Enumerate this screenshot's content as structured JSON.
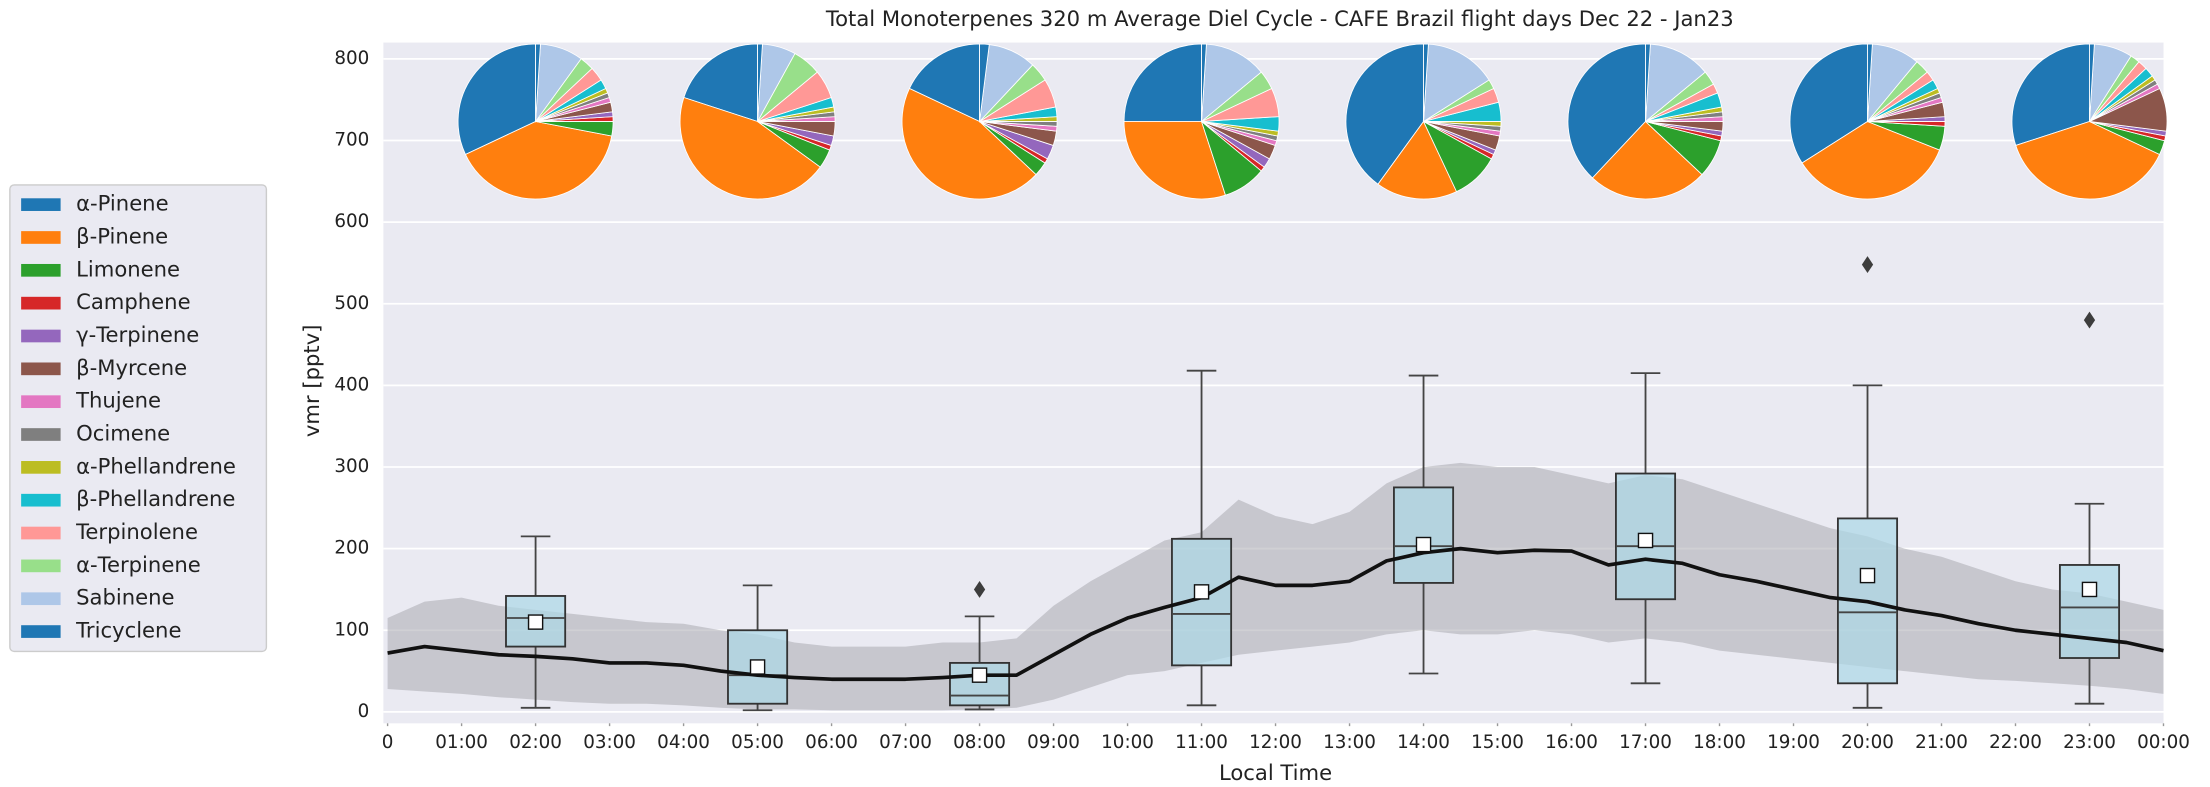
{
  "chart_data": {
    "type": "box",
    "title": "Total Monoterpenes 320 m Average Diel Cycle - CAFE Brazil flight days Dec 22 - Jan23",
    "xlabel": "Local Time",
    "ylabel": "vmr [pptv]",
    "xlim": [
      0,
      24
    ],
    "xticks": [
      0,
      {
        "value": 1,
        "label": "01:00"
      },
      {
        "value": 2,
        "label": "02:00"
      },
      {
        "value": 3,
        "label": "03:00"
      },
      {
        "value": 4,
        "label": "04:00"
      },
      {
        "value": 5,
        "label": "05:00"
      },
      {
        "value": 6,
        "label": "06:00"
      },
      {
        "value": 7,
        "label": "07:00"
      },
      {
        "value": 8,
        "label": "08:00"
      },
      {
        "value": 9,
        "label": "09:00"
      },
      {
        "value": 10,
        "label": "10:00"
      },
      {
        "value": 11,
        "label": "11:00"
      },
      {
        "value": 12,
        "label": "12:00"
      },
      {
        "value": 13,
        "label": "13:00"
      },
      {
        "value": 14,
        "label": "14:00"
      },
      {
        "value": 15,
        "label": "15:00"
      },
      {
        "value": 16,
        "label": "16:00"
      },
      {
        "value": 17,
        "label": "17:00"
      },
      {
        "value": 18,
        "label": "18:00"
      },
      {
        "value": 19,
        "label": "19:00"
      },
      {
        "value": 20,
        "label": "20:00"
      },
      {
        "value": 21,
        "label": "21:00"
      },
      {
        "value": 22,
        "label": "22:00"
      },
      {
        "value": 23,
        "label": "23:00"
      },
      {
        "value": 24,
        "label": "00:00"
      }
    ],
    "ylim": [
      -14,
      820
    ],
    "yticks": [
      0,
      100,
      200,
      300,
      400,
      500,
      600,
      700,
      800
    ],
    "grid": "y",
    "box_color": "#add8e6",
    "boxes": [
      {
        "x": 2,
        "whisker_low": 5,
        "q1": 80,
        "median": 115,
        "q3": 142,
        "whisker_high": 215,
        "mean": 110,
        "outliers": []
      },
      {
        "x": 5,
        "whisker_low": 2,
        "q1": 10,
        "median": 45,
        "q3": 100,
        "whisker_high": 155,
        "mean": 55,
        "outliers": []
      },
      {
        "x": 8,
        "whisker_low": 3,
        "q1": 8,
        "median": 20,
        "q3": 60,
        "whisker_high": 117,
        "mean": 45,
        "outliers": [
          150
        ]
      },
      {
        "x": 11,
        "whisker_low": 8,
        "q1": 57,
        "median": 120,
        "q3": 212,
        "whisker_high": 418,
        "mean": 147,
        "outliers": []
      },
      {
        "x": 14,
        "whisker_low": 47,
        "q1": 158,
        "median": 203,
        "q3": 275,
        "whisker_high": 412,
        "mean": 205,
        "outliers": []
      },
      {
        "x": 17,
        "whisker_low": 35,
        "q1": 138,
        "median": 203,
        "q3": 292,
        "whisker_high": 415,
        "mean": 210,
        "outliers": []
      },
      {
        "x": 20,
        "whisker_low": 5,
        "q1": 35,
        "median": 122,
        "q3": 237,
        "whisker_high": 400,
        "mean": 167,
        "outliers": [
          548
        ]
      },
      {
        "x": 23,
        "whisker_low": 10,
        "q1": 66,
        "median": 128,
        "q3": 180,
        "whisker_high": 255,
        "mean": 150,
        "outliers": [
          480
        ]
      }
    ],
    "line": {
      "color": "#111111",
      "band_color": "#a9a9b0",
      "x": [
        0,
        0.5,
        1,
        1.5,
        2,
        2.5,
        3,
        3.5,
        4,
        4.5,
        5,
        5.5,
        6,
        6.5,
        7,
        7.5,
        8,
        8.5,
        9,
        9.5,
        10,
        10.5,
        11,
        11.5,
        12,
        12.5,
        13,
        13.5,
        14,
        14.5,
        15,
        15.5,
        16,
        16.5,
        17,
        17.5,
        18,
        18.5,
        19,
        19.5,
        20,
        20.5,
        21,
        21.5,
        22,
        22.5,
        23,
        23.5,
        24
      ],
      "values": [
        72,
        80,
        75,
        70,
        68,
        65,
        60,
        60,
        57,
        50,
        45,
        42,
        40,
        40,
        40,
        42,
        45,
        45,
        70,
        95,
        115,
        128,
        140,
        165,
        155,
        155,
        160,
        185,
        195,
        200,
        195,
        198,
        197,
        180,
        187,
        182,
        168,
        160,
        150,
        140,
        135,
        125,
        118,
        108,
        100,
        95,
        90,
        85,
        75
      ],
      "upper": [
        115,
        135,
        140,
        130,
        125,
        120,
        115,
        110,
        108,
        100,
        95,
        85,
        80,
        80,
        80,
        85,
        85,
        90,
        130,
        160,
        185,
        210,
        220,
        260,
        240,
        230,
        245,
        280,
        300,
        305,
        300,
        300,
        290,
        280,
        290,
        285,
        270,
        255,
        240,
        225,
        215,
        200,
        190,
        175,
        160,
        150,
        145,
        135,
        125
      ],
      "lower": [
        28,
        25,
        22,
        18,
        15,
        12,
        10,
        10,
        8,
        5,
        3,
        3,
        2,
        2,
        2,
        2,
        3,
        5,
        15,
        30,
        45,
        50,
        60,
        70,
        75,
        80,
        85,
        95,
        100,
        95,
        95,
        100,
        95,
        85,
        90,
        85,
        75,
        70,
        65,
        60,
        55,
        50,
        45,
        40,
        38,
        35,
        32,
        28,
        22
      ]
    },
    "pies": {
      "labels": [
        "α-Pinene",
        "β-Pinene",
        "Limonene",
        "Camphene",
        "γ-Terpinene",
        "β-Myrcene",
        "Thujene",
        "Ocimene",
        "α-Phellandrene",
        "β-Phellandrene",
        "Terpinolene",
        "α-Terpinene",
        "Sabinene",
        "Tricyclene"
      ],
      "colors": [
        "#1f77b4",
        "#ff7f0e",
        "#2ca02c",
        "#d62728",
        "#9467bd",
        "#8c564b",
        "#e377c2",
        "#7f7f7f",
        "#bcbd22",
        "#17becf",
        "#ff9896",
        "#98df8a",
        "#aec7e8",
        "#1f77b4"
      ],
      "series": [
        {
          "values": [
            32,
            40,
            3,
            1,
            1,
            2,
            1,
            1,
            1,
            2,
            3,
            3,
            9,
            1
          ]
        },
        {
          "values": [
            20,
            45,
            4,
            1,
            2,
            3,
            1,
            1,
            1,
            2,
            6,
            6,
            7,
            1
          ]
        },
        {
          "values": [
            18,
            45,
            3,
            1,
            3,
            3,
            1,
            1,
            1,
            2,
            6,
            4,
            10,
            2
          ]
        },
        {
          "values": [
            25,
            30,
            9,
            1,
            2,
            3,
            1,
            1,
            1,
            3,
            6,
            4,
            13,
            1
          ]
        },
        {
          "values": [
            40,
            17,
            10,
            1,
            1,
            3,
            1,
            1,
            1,
            4,
            3,
            2,
            15,
            1
          ]
        },
        {
          "values": [
            38,
            25,
            8,
            1,
            1,
            2,
            1,
            1,
            1,
            3,
            2,
            3,
            13,
            1
          ]
        },
        {
          "values": [
            34,
            35,
            5,
            1,
            1,
            3,
            1,
            1,
            1,
            2,
            2,
            3,
            10,
            1
          ]
        },
        {
          "values": [
            30,
            38,
            3,
            1,
            1,
            9,
            1,
            1,
            1,
            2,
            2,
            2,
            8,
            1
          ]
        }
      ]
    }
  }
}
